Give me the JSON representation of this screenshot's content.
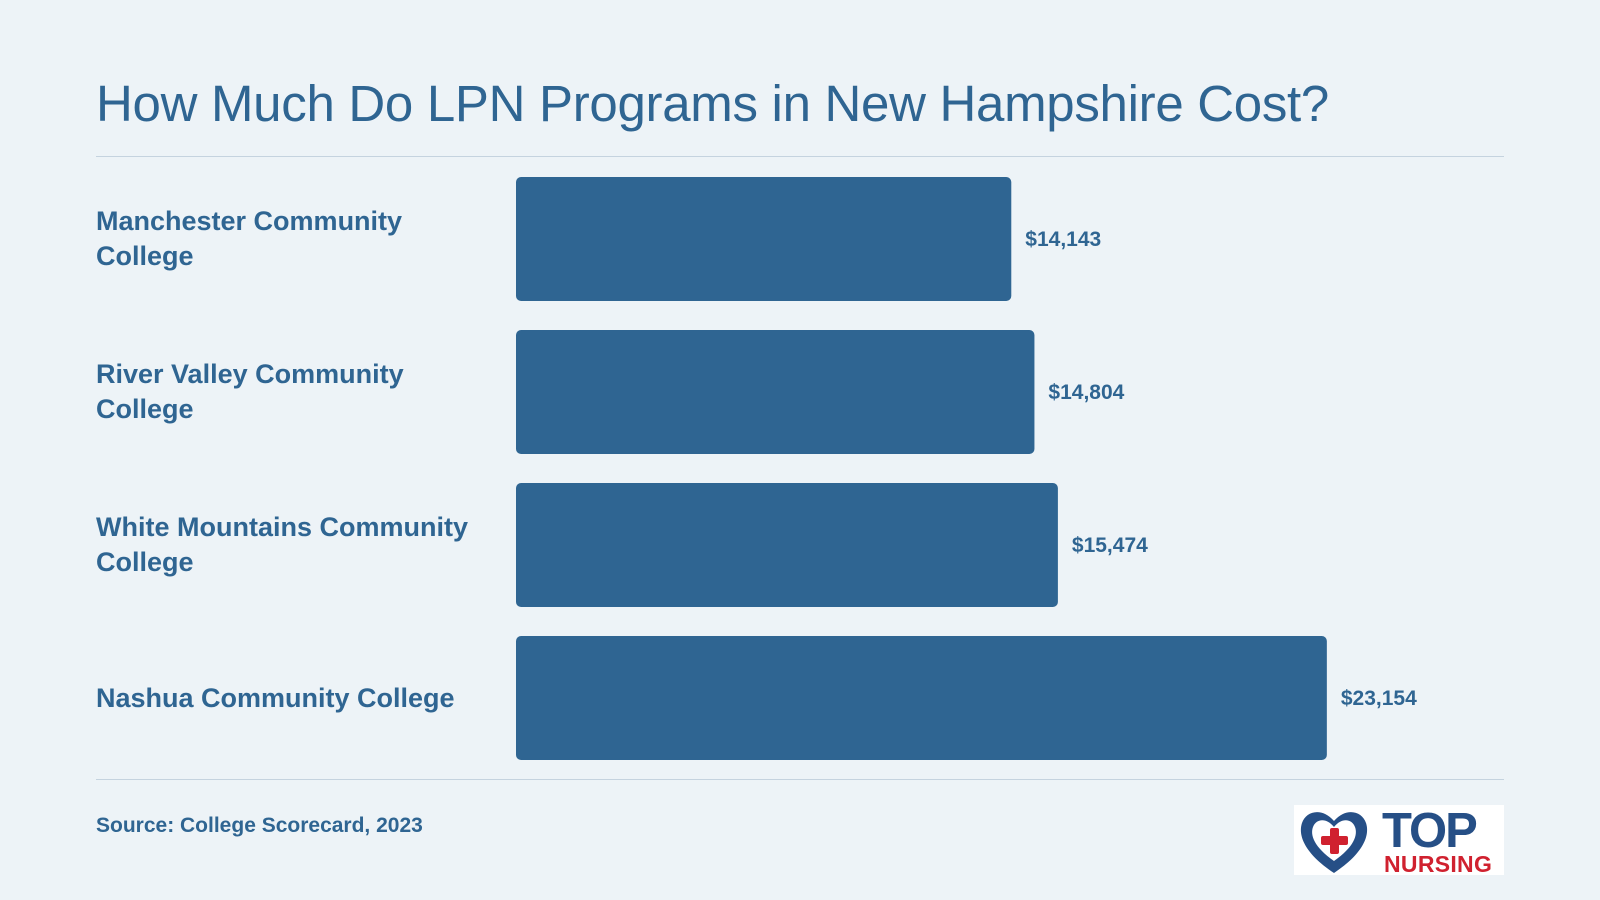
{
  "title": "How Much Do LPN Programs in New Hampshire Cost?",
  "source": "Source: College Scorecard, 2023",
  "logo": {
    "top": "TOP",
    "nursing": "NURSING"
  },
  "colors": {
    "bar": "#2f6592",
    "text": "#2f6592",
    "background": "#edf3f7",
    "rule": "#c5d3df",
    "logo_blue": "#264f86",
    "logo_red": "#d0212f"
  },
  "chart_data": {
    "type": "bar",
    "orientation": "horizontal",
    "categories": [
      "Manchester Community College",
      "River Valley Community College",
      "White Mountains Community College",
      "Nashua Community College"
    ],
    "values": [
      14143,
      14804,
      15474,
      23154
    ],
    "value_labels": [
      "$14,143",
      "$14,804",
      "$15,474",
      "$23,154"
    ],
    "title": "How Much Do LPN Programs in New Hampshire Cost?",
    "xlabel": "",
    "ylabel": "",
    "grid": false,
    "legend": "none"
  }
}
